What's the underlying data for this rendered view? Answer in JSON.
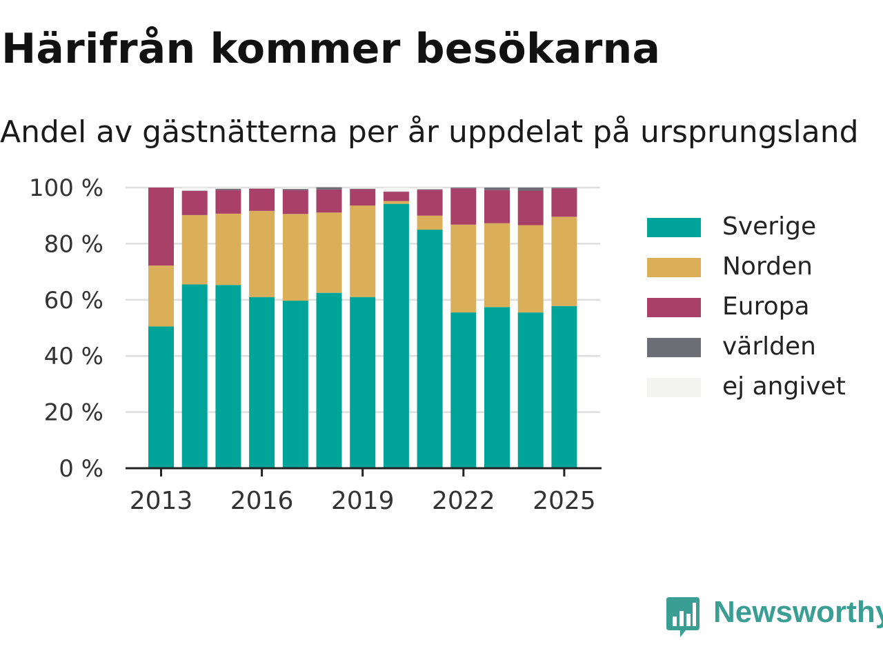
{
  "header": {
    "title": "Härifrån kommer besökarna",
    "subtitle": "Andel av gästnätterna per år uppdelat på ursprungsland"
  },
  "brand": {
    "name": "Newsworthy",
    "icon": "newsworthy-logo-icon",
    "color": "#3a9e94"
  },
  "chart_data": {
    "type": "bar",
    "stacked": true,
    "x": [
      2013,
      2014,
      2015,
      2016,
      2017,
      2018,
      2019,
      2020,
      2021,
      2022,
      2023,
      2024,
      2025
    ],
    "x_ticks": [
      "2013",
      "2016",
      "2019",
      "2022",
      "2025"
    ],
    "y_ticks": [
      "0 %",
      "20 %",
      "40 %",
      "60 %",
      "80 %",
      "100 %"
    ],
    "ylim": [
      0,
      100
    ],
    "grid": true,
    "legend_position": "right",
    "series": [
      {
        "name": "Sverige",
        "color": "#00a499",
        "values": [
          50.5,
          65.5,
          65.3,
          61.0,
          59.7,
          62.5,
          61.0,
          94.2,
          85.0,
          55.5,
          57.4,
          55.5,
          57.8
        ]
      },
      {
        "name": "Norden",
        "color": "#dbaf5a",
        "values": [
          21.7,
          24.7,
          25.4,
          30.7,
          30.9,
          28.6,
          32.6,
          1.0,
          5.0,
          31.3,
          29.9,
          31.1,
          31.8
        ]
      },
      {
        "name": "Europa",
        "color": "#a84068",
        "values": [
          27.8,
          8.6,
          8.4,
          7.9,
          8.5,
          8.2,
          5.8,
          3.3,
          9.2,
          12.9,
          11.8,
          12.3,
          10.1
        ]
      },
      {
        "name": "världen",
        "color": "#6d6d75",
        "values": [
          0.0,
          0.1,
          0.5,
          0.1,
          0.4,
          0.8,
          0.2,
          0.1,
          0.2,
          0.3,
          0.9,
          1.1,
          0.3
        ]
      },
      {
        "name": "ej angivet",
        "color": "#f4f4f2",
        "values": [
          0.0,
          1.1,
          0.4,
          0.3,
          0.5,
          0.0,
          0.4,
          1.4,
          0.6,
          0.0,
          0.0,
          0.0,
          0.0
        ]
      }
    ]
  }
}
